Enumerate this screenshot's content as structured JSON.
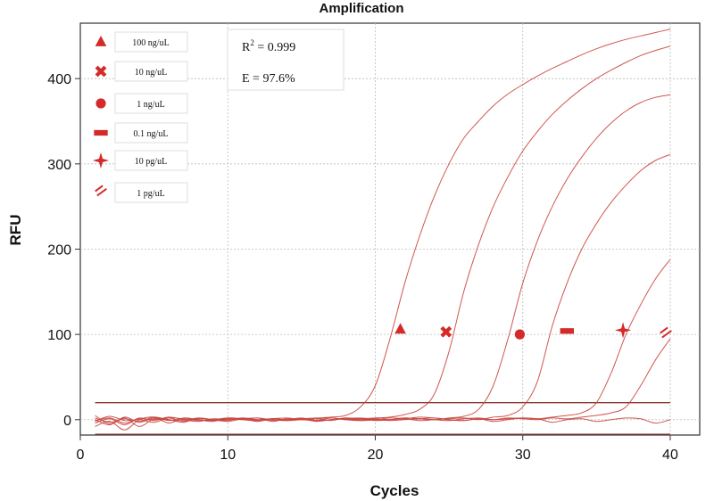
{
  "chart_data": {
    "type": "line",
    "title": "Amplification",
    "xlabel": "Cycles",
    "ylabel": "RFU",
    "xlim": [
      0,
      42
    ],
    "ylim": [
      -18,
      465
    ],
    "x_ticks": [
      0,
      10,
      20,
      30,
      40
    ],
    "y_ticks": [
      0,
      100,
      200,
      300,
      400
    ],
    "grid": true,
    "legend_position": "top-left",
    "line_color": "#c9453f",
    "marker_color": "#d42a2a",
    "threshold": {
      "value": 20,
      "color": "#8b3a32"
    },
    "baseline": {
      "value": -17,
      "color": "#8b3a32"
    },
    "annotations": {
      "r2_label": "R",
      "r2_sup": "2",
      "r2_value": " = 0.999",
      "efficiency": "E = 97.6%"
    },
    "series": [
      {
        "name": "100 ng/uL",
        "marker": "triangle",
        "marker_point": [
          21.7,
          106
        ],
        "x": [
          1,
          2,
          3,
          4,
          5,
          6,
          7,
          8,
          9,
          10,
          11,
          12,
          13,
          14,
          15,
          16,
          17,
          18,
          19,
          20,
          21,
          22,
          23,
          24,
          25,
          26,
          27,
          28,
          29,
          30,
          31,
          32,
          33,
          34,
          35,
          36,
          37,
          38,
          39,
          40
        ],
        "y": [
          2,
          -3,
          1,
          -2,
          3,
          0,
          -1,
          2,
          0,
          -2,
          1,
          2,
          0,
          -1,
          1,
          2,
          3,
          5,
          15,
          40,
          95,
          160,
          215,
          262,
          300,
          330,
          350,
          368,
          382,
          393,
          403,
          412,
          420,
          428,
          435,
          441,
          446,
          450,
          454,
          458
        ]
      },
      {
        "name": "10 ng/uL",
        "marker": "x",
        "marker_point": [
          24.8,
          103
        ],
        "x": [
          1,
          2,
          3,
          4,
          5,
          6,
          7,
          8,
          9,
          10,
          11,
          12,
          13,
          14,
          15,
          16,
          17,
          18,
          19,
          20,
          21,
          22,
          23,
          24,
          25,
          26,
          27,
          28,
          29,
          30,
          31,
          32,
          33,
          34,
          35,
          36,
          37,
          38,
          39,
          40
        ],
        "y": [
          -4,
          1,
          -6,
          2,
          -1,
          3,
          0,
          -2,
          1,
          0,
          2,
          -1,
          1,
          0,
          1,
          -1,
          2,
          0,
          1,
          2,
          3,
          6,
          12,
          30,
          80,
          150,
          205,
          250,
          285,
          315,
          338,
          358,
          374,
          388,
          400,
          410,
          419,
          427,
          433,
          438
        ]
      },
      {
        "name": "1 ng/uL",
        "marker": "circle",
        "marker_point": [
          29.8,
          100
        ],
        "x": [
          1,
          2,
          3,
          4,
          5,
          6,
          7,
          8,
          9,
          10,
          11,
          12,
          13,
          14,
          15,
          16,
          17,
          18,
          19,
          20,
          21,
          22,
          23,
          24,
          25,
          26,
          27,
          28,
          29,
          30,
          31,
          32,
          33,
          34,
          35,
          36,
          37,
          38,
          39,
          40
        ],
        "y": [
          -8,
          -2,
          -12,
          0,
          3,
          -4,
          2,
          0,
          -1,
          1,
          0,
          2,
          -2,
          1,
          0,
          1,
          -1,
          2,
          0,
          1,
          0,
          2,
          1,
          0,
          2,
          4,
          12,
          40,
          95,
          160,
          210,
          250,
          282,
          308,
          330,
          348,
          362,
          372,
          378,
          381
        ]
      },
      {
        "name": "0.1 ng/uL",
        "marker": "dash",
        "marker_point": [
          33.0,
          104
        ],
        "x": [
          1,
          2,
          3,
          4,
          5,
          6,
          7,
          8,
          9,
          10,
          11,
          12,
          13,
          14,
          15,
          16,
          17,
          18,
          19,
          20,
          21,
          22,
          23,
          24,
          25,
          26,
          27,
          28,
          29,
          30,
          31,
          32,
          33,
          34,
          35,
          36,
          37,
          38,
          39,
          40
        ],
        "y": [
          5,
          -5,
          2,
          -8,
          1,
          0,
          -3,
          2,
          -1,
          0,
          1,
          -2,
          1,
          0,
          2,
          -1,
          0,
          1,
          -1,
          0,
          2,
          1,
          -1,
          0,
          1,
          2,
          0,
          3,
          5,
          15,
          45,
          110,
          160,
          200,
          230,
          255,
          275,
          292,
          304,
          311
        ]
      },
      {
        "name": "10 pg/uL",
        "marker": "star",
        "marker_point": [
          36.8,
          105
        ],
        "x": [
          1,
          2,
          3,
          4,
          5,
          6,
          7,
          8,
          9,
          10,
          11,
          12,
          13,
          14,
          15,
          16,
          17,
          18,
          19,
          20,
          21,
          22,
          23,
          24,
          25,
          26,
          27,
          28,
          29,
          30,
          31,
          32,
          33,
          34,
          35,
          36,
          37,
          38,
          39,
          40
        ],
        "y": [
          -1,
          2,
          -4,
          1,
          0,
          2,
          -2,
          1,
          0,
          -1,
          2,
          0,
          1,
          -1,
          0,
          1,
          2,
          0,
          -1,
          1,
          0,
          2,
          1,
          0,
          -1,
          1,
          2,
          0,
          1,
          2,
          1,
          3,
          5,
          8,
          20,
          55,
          100,
          135,
          165,
          188
        ]
      },
      {
        "name": "1 pg/uL",
        "marker": "double-slash",
        "marker_point": [
          39.7,
          100
        ],
        "x": [
          1,
          2,
          3,
          4,
          5,
          6,
          7,
          8,
          9,
          10,
          11,
          12,
          13,
          14,
          15,
          16,
          17,
          18,
          19,
          20,
          21,
          22,
          23,
          24,
          25,
          26,
          27,
          28,
          29,
          30,
          31,
          32,
          33,
          34,
          35,
          36,
          37,
          38,
          39,
          40
        ],
        "y": [
          0,
          -6,
          3,
          -3,
          2,
          -1,
          1,
          0,
          -2,
          2,
          1,
          0,
          -1,
          0,
          1,
          -2,
          0,
          1,
          2,
          0,
          -1,
          0,
          1,
          2,
          0,
          -1,
          1,
          0,
          2,
          1,
          0,
          2,
          1,
          3,
          5,
          8,
          15,
          40,
          70,
          95
        ]
      },
      {
        "name": "",
        "marker": "none",
        "x": [
          1,
          2,
          3,
          4,
          5,
          6,
          7,
          8,
          9,
          10,
          11,
          12,
          13,
          14,
          15,
          16,
          17,
          18,
          19,
          20,
          21,
          22,
          23,
          24,
          25,
          26,
          27,
          28,
          29,
          30,
          31,
          32,
          33,
          34,
          35,
          36,
          37,
          38,
          39,
          40
        ],
        "y": [
          -2,
          4,
          -1,
          0,
          -3,
          2,
          1,
          -1,
          0,
          2,
          0,
          -1,
          1,
          2,
          0,
          -1,
          0,
          2,
          1,
          -1,
          0,
          1,
          3,
          2,
          0,
          -1,
          1,
          -2,
          0,
          2,
          1,
          -3,
          0,
          1,
          -2,
          0,
          2,
          1,
          -4,
          0
        ]
      }
    ]
  }
}
